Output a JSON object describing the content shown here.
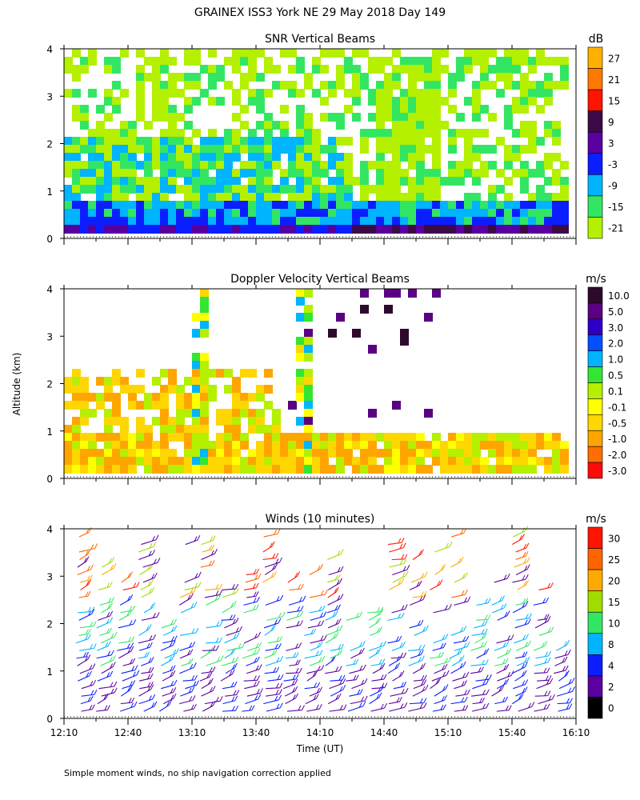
{
  "figure": {
    "title": "GRAINEX ISS3 York NE  29 May 2018 Day 149",
    "ylabel": "Altitude (km)",
    "xlabel": "Time (UT)",
    "footnote": "Simple moment winds, no ship navigation correction applied",
    "x_ticks": [
      "12:10",
      "12:40",
      "13:10",
      "13:40",
      "14:10",
      "14:40",
      "15:10",
      "15:40",
      "16:10"
    ],
    "y_ticks": [
      "0",
      "1",
      "2",
      "3",
      "4"
    ]
  },
  "chart_data": [
    {
      "type": "heatmap",
      "title": "SNR Vertical Beams",
      "unit": "dB",
      "x_range": [
        "12:10",
        "16:10"
      ],
      "y_range_km": [
        0,
        4
      ],
      "colorbar": {
        "labels": [
          "27",
          "21",
          "15",
          "9",
          "3",
          "-3",
          "-9",
          "-15",
          "-21"
        ],
        "colors": [
          "#ffb000",
          "#ff7800",
          "#ff1400",
          "#3c0a46",
          "#5a00a0",
          "#0a1eff",
          "#00b4ff",
          "#32e664",
          "#b4f000"
        ]
      },
      "description_levels_km": {
        "strong_return_below": 0.8,
        "moderate_return_below": 2.3,
        "weak_return_up_to": 4.0
      }
    },
    {
      "type": "heatmap",
      "title": "Doppler Velocity Vertical Beams",
      "unit": "m/s",
      "x_range": [
        "12:10",
        "16:10"
      ],
      "y_range_km": [
        0,
        4
      ],
      "colorbar": {
        "labels": [
          "10.0",
          "5.0",
          "3.0",
          "2.0",
          "1.0",
          "0.5",
          "0.1",
          "-0.1",
          "-0.5",
          "-1.0",
          "-2.0",
          "-3.0"
        ],
        "colors": [
          "#2d0a2d",
          "#5a0082",
          "#2d00c8",
          "#0050ff",
          "#00b4ff",
          "#32e632",
          "#b4f000",
          "#ffff00",
          "#ffd700",
          "#ffa500",
          "#ff6e00",
          "#ff0a0a"
        ]
      }
    },
    {
      "type": "scatter",
      "title": "Winds (10 minutes)",
      "unit": "m/s",
      "x_range": [
        "12:10",
        "16:10"
      ],
      "y_range_km": [
        0,
        4
      ],
      "colorbar": {
        "labels": [
          "30",
          "25",
          "20",
          "15",
          "10",
          "8",
          "4",
          "2",
          "0"
        ],
        "colors": [
          "#ff1400",
          "#ff6400",
          "#ffaa00",
          "#a0dc00",
          "#32e664",
          "#00b4ff",
          "#0a1eff",
          "#5a00a0",
          "#000000"
        ]
      }
    }
  ]
}
